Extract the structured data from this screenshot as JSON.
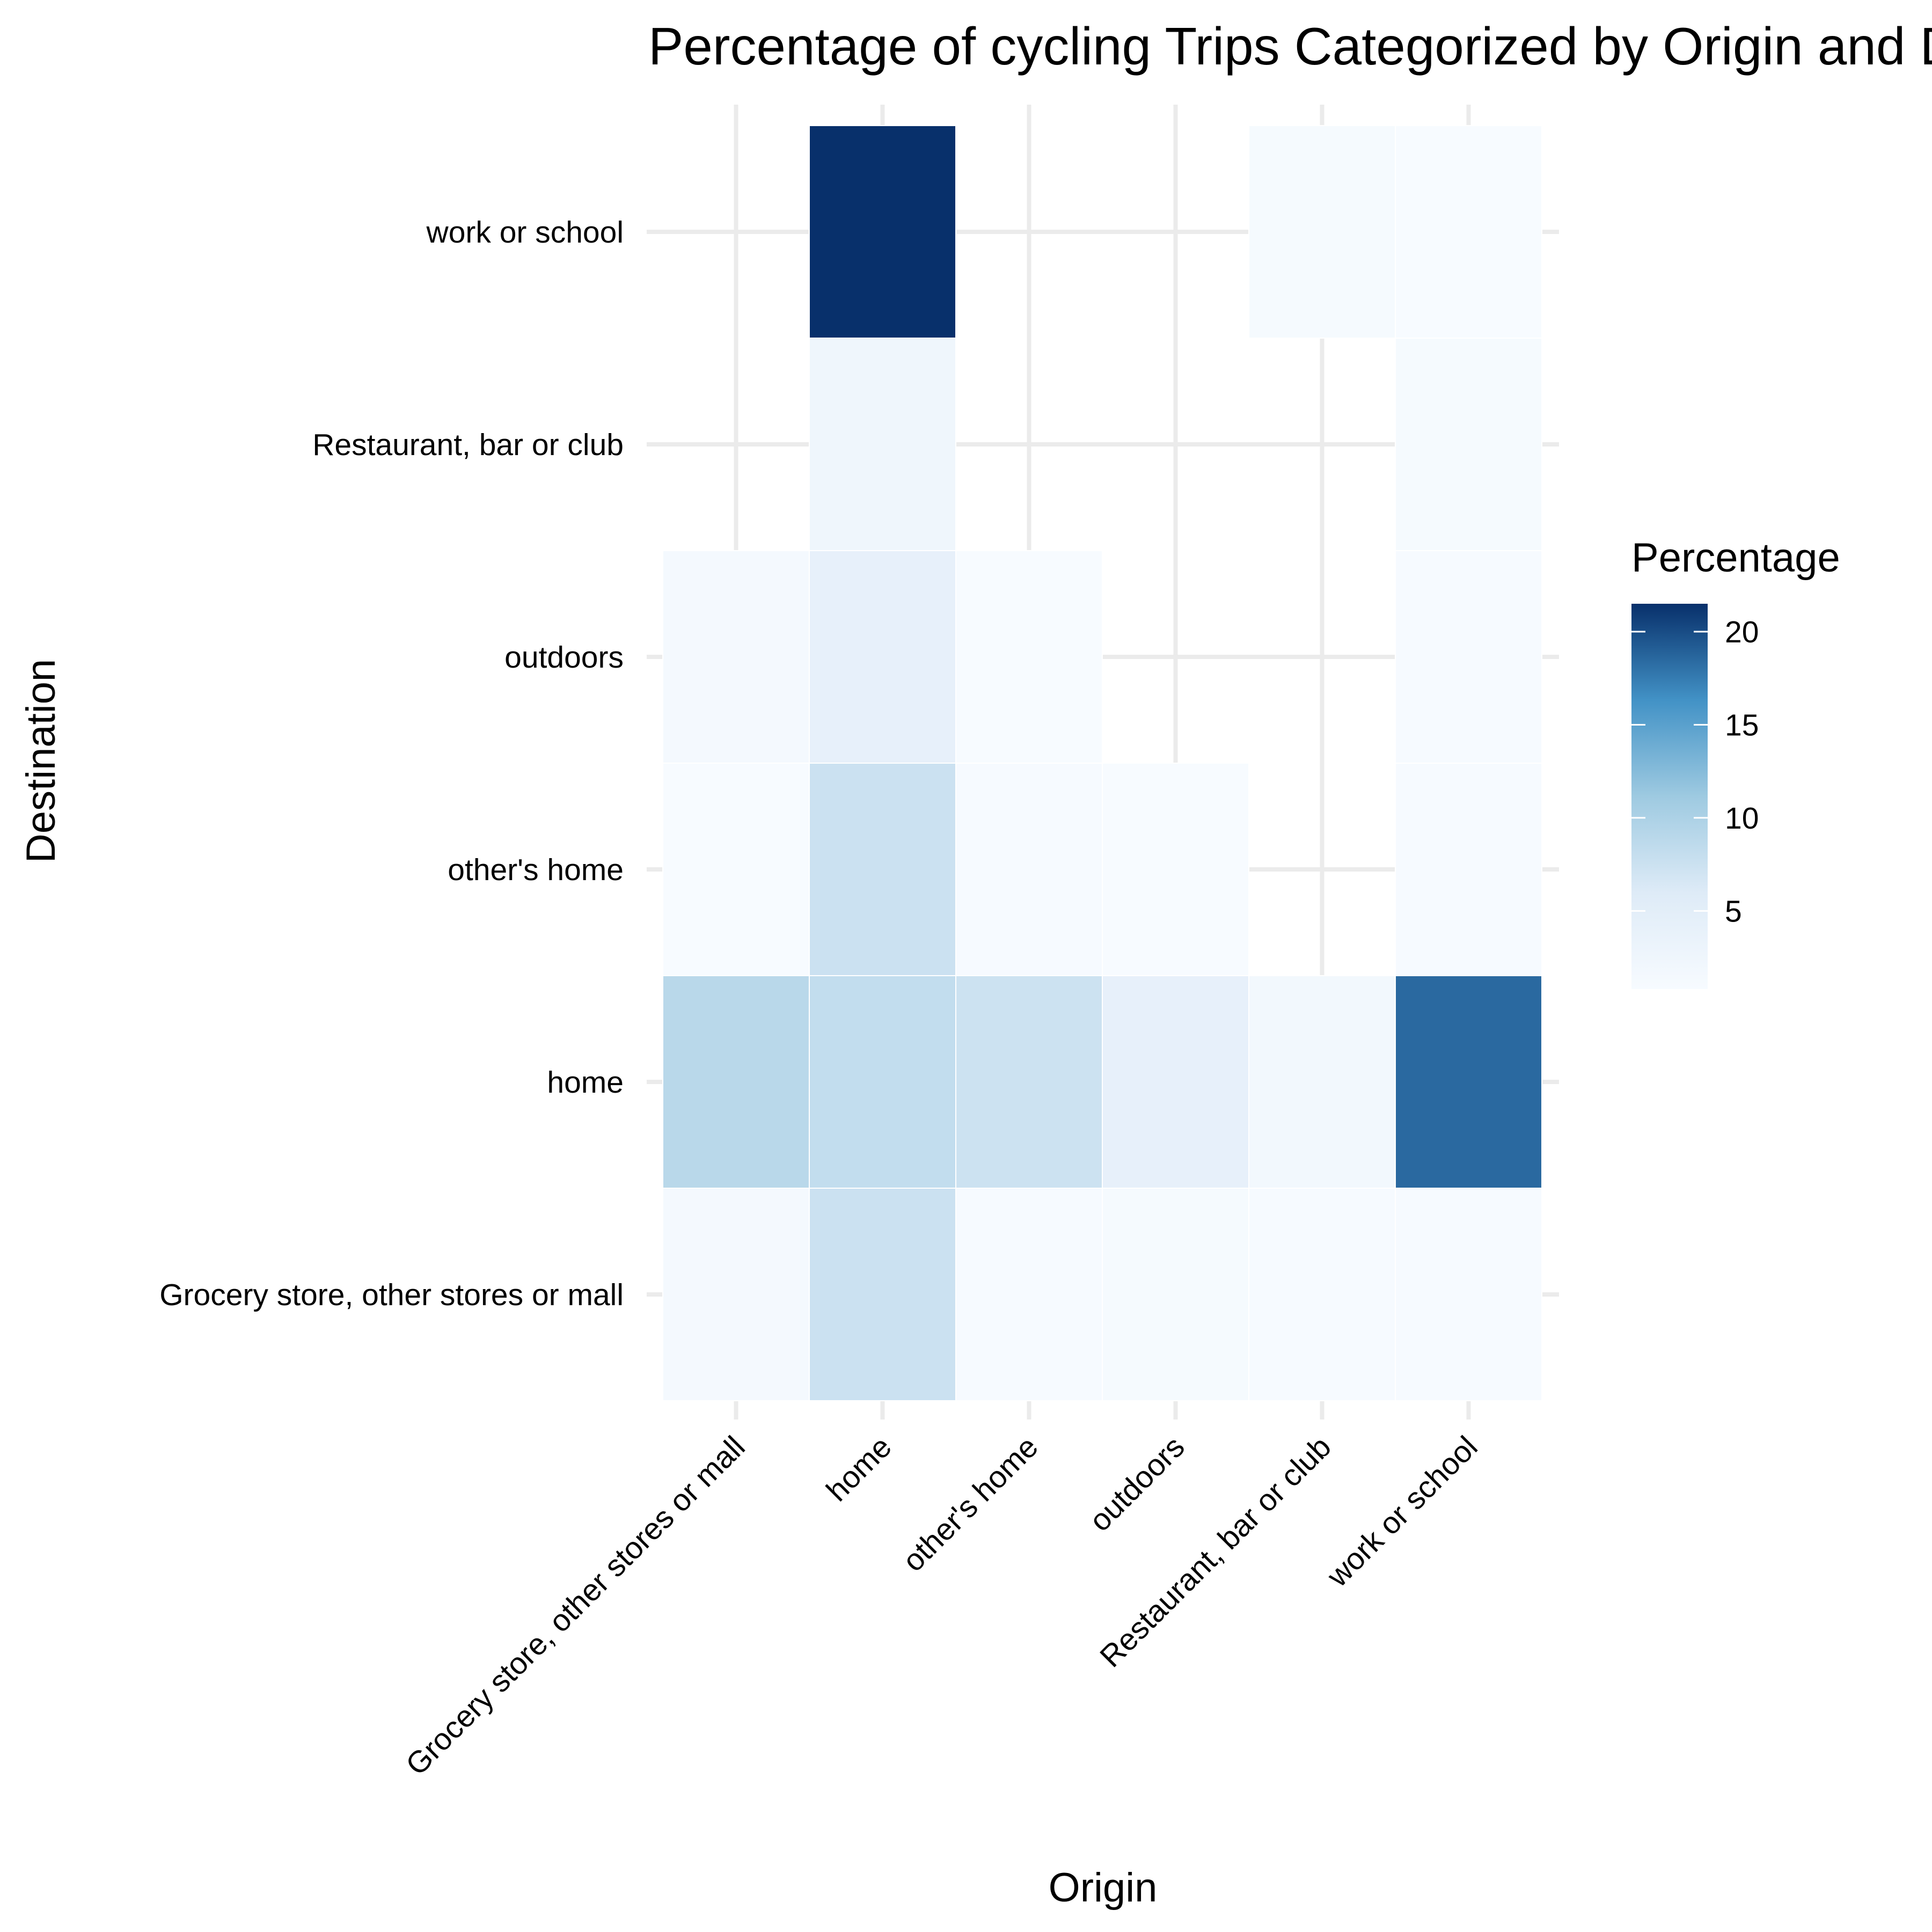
{
  "chart_data": {
    "type": "heatmap",
    "title": "Percentage of cycling Trips Categorized by Origin and Destination",
    "xlabel": "Origin",
    "ylabel": "Destination",
    "x_categories": [
      "Grocery store, other stores or mall",
      "home",
      "other's home",
      "outdoors",
      "Restaurant, bar or club",
      "work or school"
    ],
    "y_categories": [
      "Grocery store, other stores or mall",
      "home",
      "other's home",
      "outdoors",
      "Restaurant, bar or club",
      "work or school"
    ],
    "cells": [
      {
        "x": "Grocery store, other stores or mall",
        "y": "Grocery store, other stores or mall",
        "value": 1.5
      },
      {
        "x": "home",
        "y": "Grocery store, other stores or mall",
        "value": 7.5
      },
      {
        "x": "other's home",
        "y": "Grocery store, other stores or mall",
        "value": 1.0
      },
      {
        "x": "outdoors",
        "y": "Grocery store, other stores or mall",
        "value": 1.2
      },
      {
        "x": "Restaurant, bar or club",
        "y": "Grocery store, other stores or mall",
        "value": 1.1
      },
      {
        "x": "work or school",
        "y": "Grocery store, other stores or mall",
        "value": 1.0
      },
      {
        "x": "Grocery store, other stores or mall",
        "y": "home",
        "value": 9.0
      },
      {
        "x": "home",
        "y": "home",
        "value": 8.2
      },
      {
        "x": "other's home",
        "y": "home",
        "value": 7.4
      },
      {
        "x": "outdoors",
        "y": "home",
        "value": 4.2
      },
      {
        "x": "Restaurant, bar or club",
        "y": "home",
        "value": 1.8
      },
      {
        "x": "work or school",
        "y": "home",
        "value": 18.5
      },
      {
        "x": "Grocery store, other stores or mall",
        "y": "other's home",
        "value": 0.8
      },
      {
        "x": "home",
        "y": "other's home",
        "value": 7.5
      },
      {
        "x": "other's home",
        "y": "other's home",
        "value": 1.0
      },
      {
        "x": "outdoors",
        "y": "other's home",
        "value": 0.8
      },
      {
        "x": "work or school",
        "y": "other's home",
        "value": 1.0
      },
      {
        "x": "Grocery store, other stores or mall",
        "y": "outdoors",
        "value": 1.5
      },
      {
        "x": "home",
        "y": "outdoors",
        "value": 4.2
      },
      {
        "x": "other's home",
        "y": "outdoors",
        "value": 0.8
      },
      {
        "x": "work or school",
        "y": "outdoors",
        "value": 1.0
      },
      {
        "x": "home",
        "y": "Restaurant, bar or club",
        "value": 2.5
      },
      {
        "x": "work or school",
        "y": "Restaurant, bar or club",
        "value": 1.2
      },
      {
        "x": "home",
        "y": "work or school",
        "value": 21.5
      },
      {
        "x": "Restaurant, bar or club",
        "y": "work or school",
        "value": 1.2
      },
      {
        "x": "work or school",
        "y": "work or school",
        "value": 0.8
      }
    ],
    "legend": {
      "title": "Percentage",
      "ticks": [
        5,
        10,
        15,
        20
      ],
      "min": 0.8,
      "max": 21.5,
      "placement": "right"
    },
    "colors": {
      "low": "#f7fbff",
      "mid1": "#deebf7",
      "mid2": "#9ecae1",
      "mid3": "#4292c6",
      "high": "#08306b",
      "grid": "#ebebeb"
    },
    "grid": true
  }
}
